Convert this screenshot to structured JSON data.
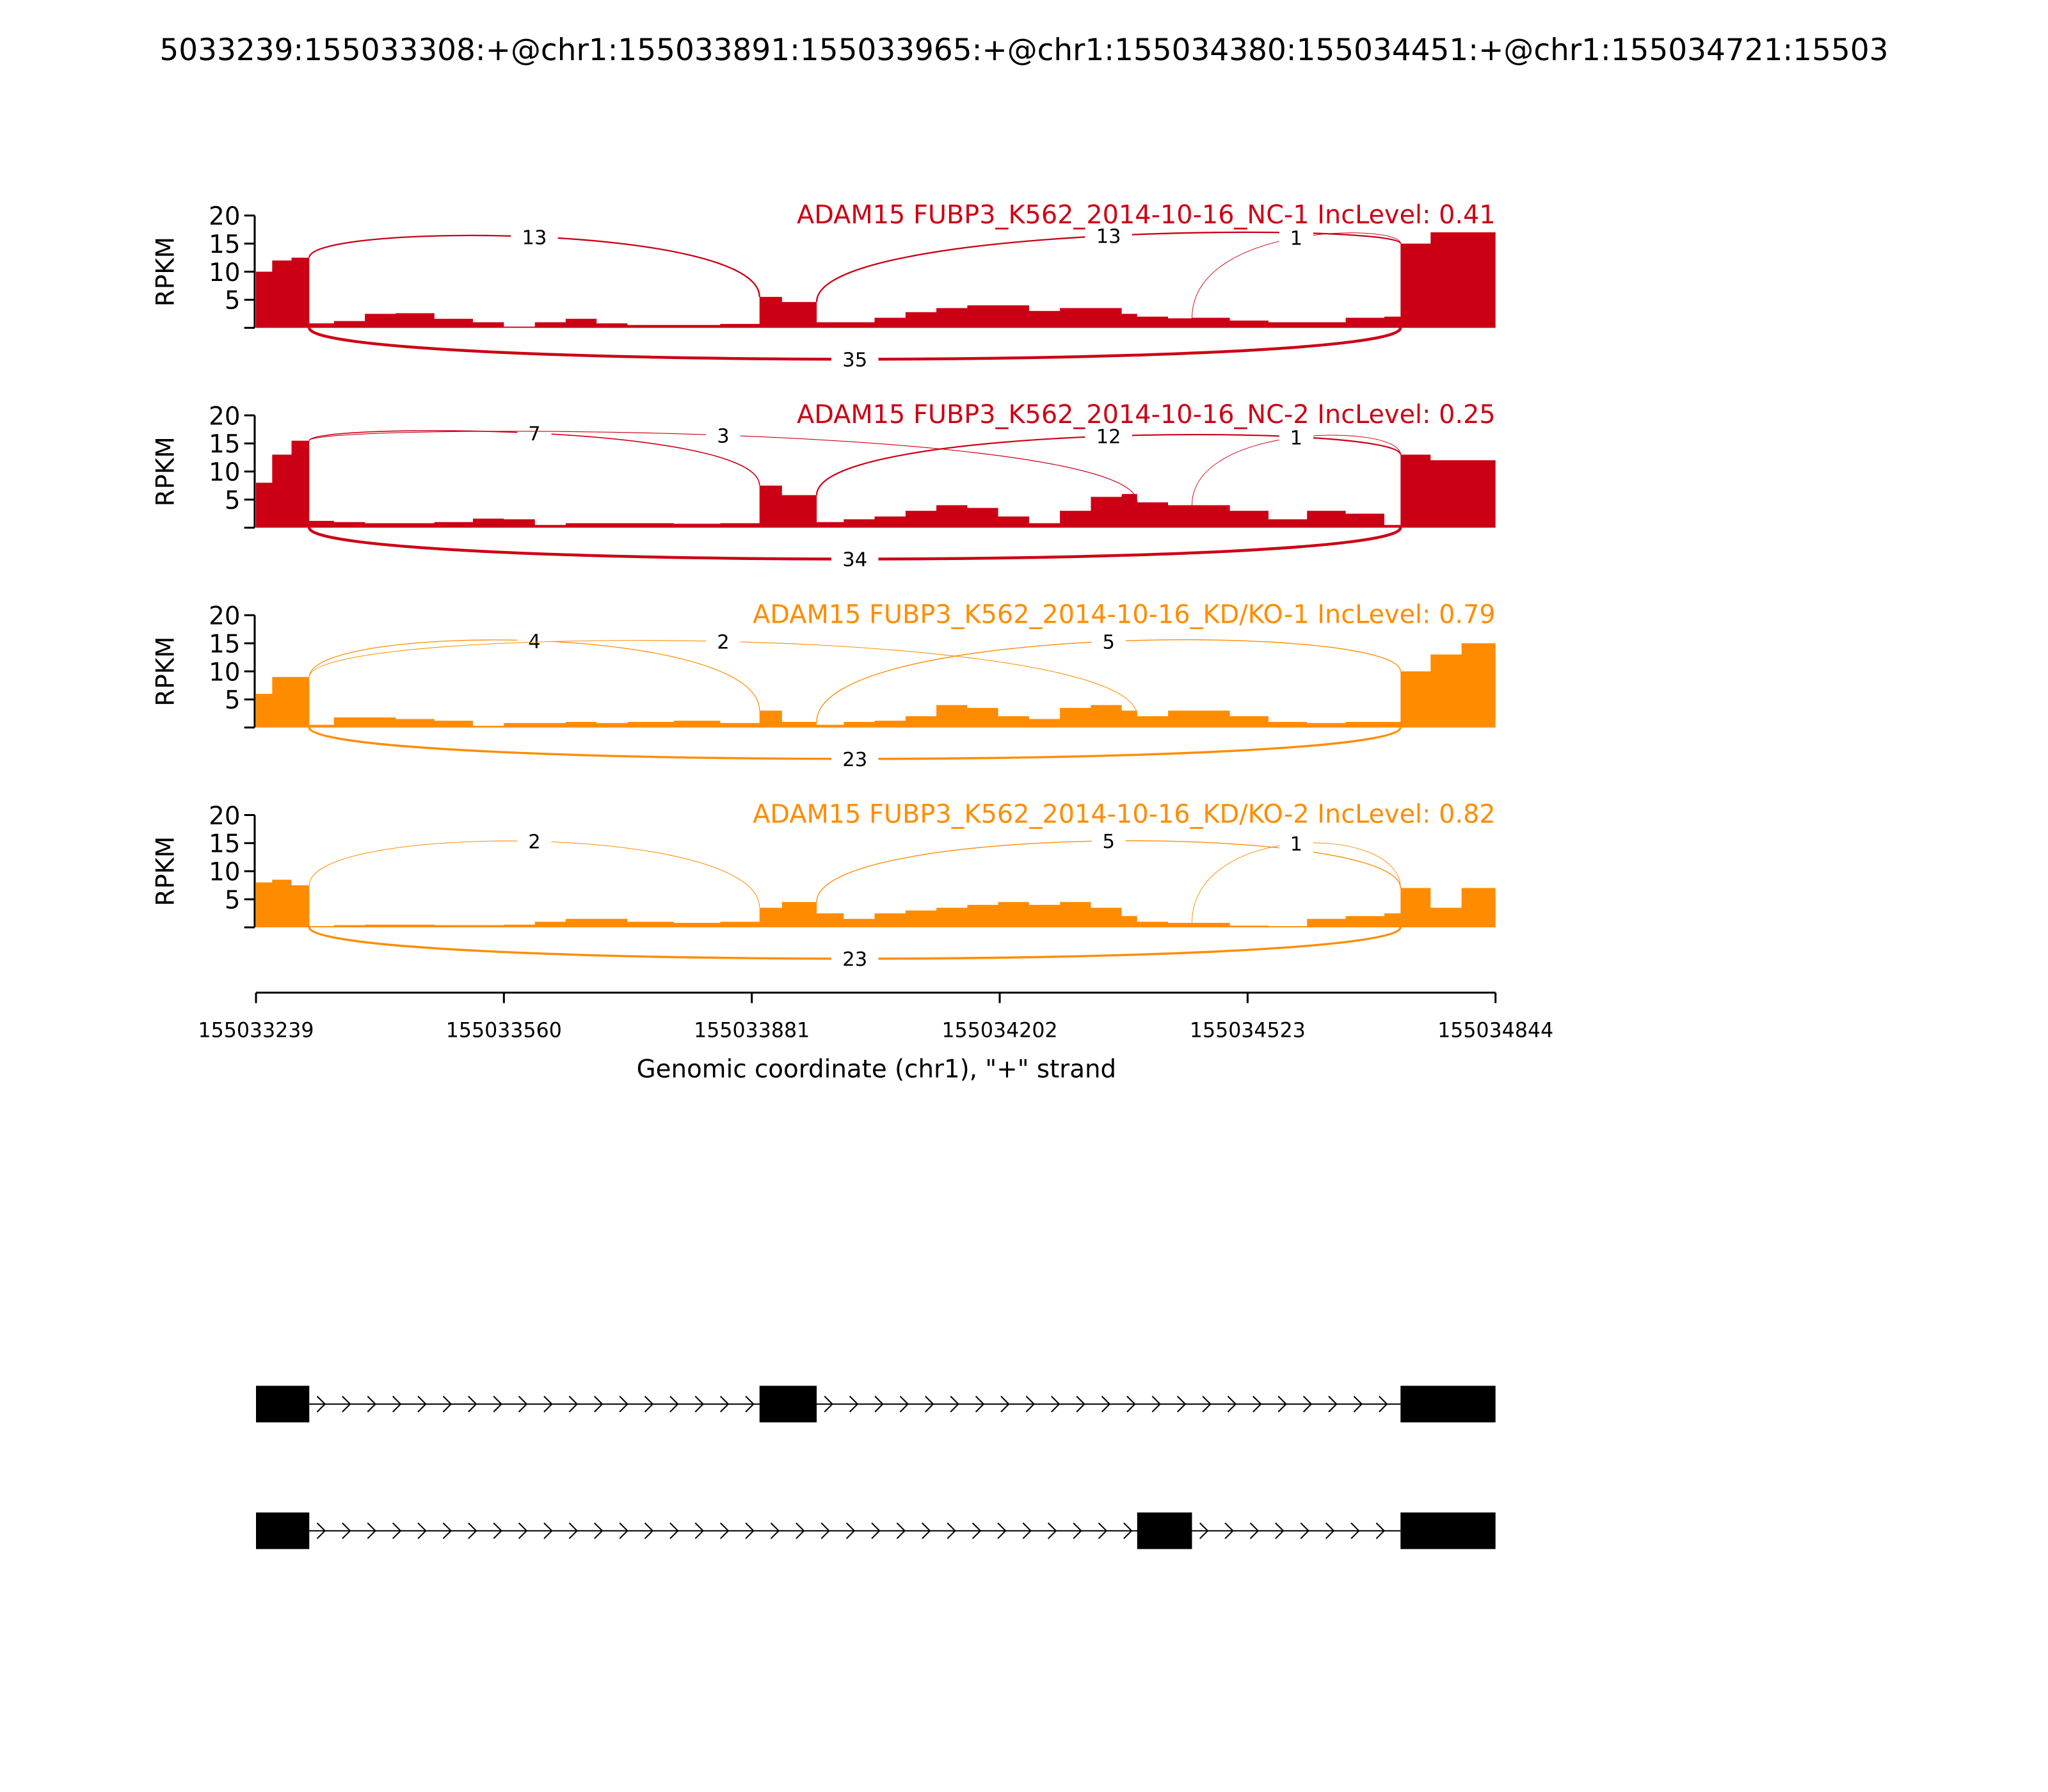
{
  "title": "5033239:155033308:+@chr1:155033891:155033965:+@chr1:155034380:155034451:+@chr1:155034721:15503",
  "chart_data": {
    "type": "area",
    "subtype": "sashimi",
    "xlabel": "Genomic coordinate (chr1), \"+\" strand",
    "ylabel": "RPKM",
    "xlim": [
      155033239,
      155034844
    ],
    "ylim": [
      0,
      20
    ],
    "xticks": [
      155033239,
      155033560,
      155033881,
      155034202,
      155034523,
      155034844
    ],
    "yticks": [
      5,
      10,
      15,
      20
    ],
    "grid": false,
    "bin_starts": [
      155033239,
      155033260,
      155033285,
      155033308,
      155033340,
      155033380,
      155033420,
      155033470,
      155033520,
      155033560,
      155033600,
      155033640,
      155033680,
      155033720,
      155033780,
      155033840,
      155033891,
      155033920,
      155033965,
      155034000,
      155034040,
      155034080,
      155034120,
      155034160,
      155034200,
      155034240,
      155034280,
      155034320,
      155034360,
      155034380,
      155034420,
      155034451,
      155034500,
      155034550,
      155034600,
      155034650,
      155034700,
      155034721,
      155034760,
      155034800,
      155034844
    ],
    "series": [
      {
        "name": "ADAM15 FUBP3_K562_2014-10-16_NC-1 IncLevel: 0.41",
        "color": "#CC0015",
        "coverage": [
          10,
          12,
          12.5,
          0.8,
          1.2,
          2.5,
          2.6,
          1.6,
          1.0,
          0.2,
          1.0,
          1.6,
          0.8,
          0.5,
          0.5,
          0.7,
          5.5,
          4.6,
          1.0,
          1.0,
          1.8,
          2.8,
          3.5,
          4.0,
          4.0,
          3.0,
          3.5,
          3.5,
          2.5,
          2.0,
          1.7,
          1.8,
          1.3,
          1.0,
          1.0,
          1.8,
          2.0,
          15,
          17,
          17
        ],
        "junctions": [
          {
            "start": 155033308,
            "end": 155033891,
            "count": "13",
            "side": "above"
          },
          {
            "start": 155033965,
            "end": 155034721,
            "count": "13",
            "side": "above"
          },
          {
            "start": 155034451,
            "end": 155034721,
            "count": "1",
            "side": "above"
          },
          {
            "start": 155033308,
            "end": 155034721,
            "count": "35",
            "side": "below"
          }
        ]
      },
      {
        "name": "ADAM15 FUBP3_K562_2014-10-16_NC-2 IncLevel: 0.25",
        "color": "#CC0015",
        "coverage": [
          8,
          13,
          15.5,
          1.2,
          1.0,
          0.8,
          0.8,
          1.0,
          1.6,
          1.5,
          0.5,
          0.8,
          0.8,
          0.8,
          0.7,
          0.8,
          7.5,
          5.8,
          1.0,
          1.5,
          2.0,
          3.0,
          4.0,
          3.5,
          2.0,
          0.8,
          3.0,
          5.5,
          6.0,
          4.5,
          4.0,
          4.0,
          3.0,
          1.5,
          3.0,
          2.5,
          0.5,
          13,
          12,
          12
        ],
        "junctions": [
          {
            "start": 155033308,
            "end": 155033891,
            "count": "7",
            "side": "above"
          },
          {
            "start": 155033308,
            "end": 155034380,
            "count": "3",
            "side": "above"
          },
          {
            "start": 155033965,
            "end": 155034721,
            "count": "12",
            "side": "above"
          },
          {
            "start": 155034451,
            "end": 155034721,
            "count": "1",
            "side": "above"
          },
          {
            "start": 155033308,
            "end": 155034721,
            "count": "34",
            "side": "below"
          }
        ]
      },
      {
        "name": "ADAM15 FUBP3_K562_2014-10-16_KD/KO-1 IncLevel: 0.79",
        "color": "#FF8C00",
        "coverage": [
          6,
          9,
          9,
          0.5,
          1.8,
          1.8,
          1.5,
          1.2,
          0.3,
          0.8,
          0.8,
          1.0,
          0.8,
          1.0,
          1.2,
          0.8,
          3.0,
          1.0,
          0.5,
          1.0,
          1.2,
          2.0,
          4.0,
          3.5,
          2.0,
          1.5,
          3.5,
          4.0,
          3.0,
          2.0,
          3.0,
          3.0,
          2.0,
          1.0,
          0.8,
          1.0,
          1.0,
          10,
          13,
          15
        ],
        "junctions": [
          {
            "start": 155033308,
            "end": 155033891,
            "count": "4",
            "side": "above"
          },
          {
            "start": 155033308,
            "end": 155034380,
            "count": "2",
            "side": "above"
          },
          {
            "start": 155033965,
            "end": 155034721,
            "count": "5",
            "side": "above"
          },
          {
            "start": 155033308,
            "end": 155034721,
            "count": "23",
            "side": "below"
          }
        ]
      },
      {
        "name": "ADAM15 FUBP3_K562_2014-10-16_KD/KO-2 IncLevel: 0.82",
        "color": "#FF8C00",
        "coverage": [
          8,
          8.5,
          7.5,
          0.2,
          0.4,
          0.5,
          0.5,
          0.4,
          0.4,
          0.5,
          1.0,
          1.5,
          1.5,
          1.0,
          0.8,
          1.0,
          3.5,
          4.5,
          2.5,
          1.5,
          2.5,
          3.0,
          3.5,
          4.0,
          4.5,
          4.0,
          4.5,
          3.5,
          2.0,
          1.0,
          0.8,
          0.8,
          0.3,
          0.2,
          1.5,
          2.0,
          2.5,
          7,
          3.5,
          7
        ],
        "junctions": [
          {
            "start": 155033308,
            "end": 155033891,
            "count": "2",
            "side": "above"
          },
          {
            "start": 155033965,
            "end": 155034721,
            "count": "5",
            "side": "above"
          },
          {
            "start": 155034451,
            "end": 155034721,
            "count": "1",
            "side": "above"
          },
          {
            "start": 155033308,
            "end": 155034721,
            "count": "23",
            "side": "below"
          }
        ]
      }
    ],
    "gene_models": [
      {
        "exons": [
          [
            155033239,
            155033308
          ],
          [
            155033891,
            155033965
          ],
          [
            155034721,
            155034844
          ]
        ],
        "strand": "+"
      },
      {
        "exons": [
          [
            155033239,
            155033308
          ],
          [
            155034380,
            155034451
          ],
          [
            155034721,
            155034844
          ]
        ],
        "strand": "+"
      }
    ]
  }
}
